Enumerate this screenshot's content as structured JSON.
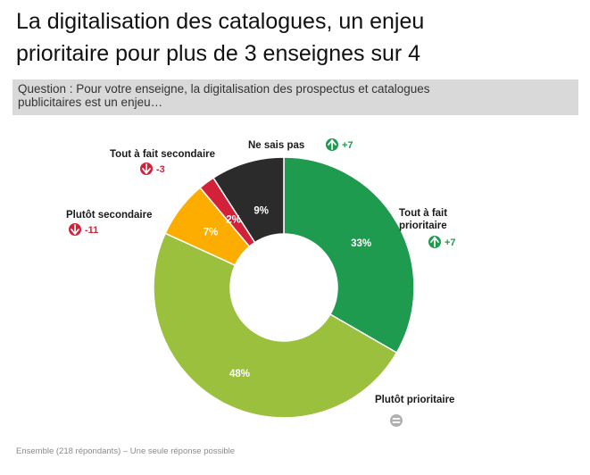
{
  "header": {
    "title_line1": "La digitalisation des catalogues, un enjeu",
    "title_line2": "prioritaire pour plus de 3 enseignes sur 4",
    "question_line1": "Question : Pour votre enseigne, la digitalisation des prospectus et catalogues",
    "question_line2": "publicitaires est un enjeu…"
  },
  "footer": {
    "note": "Ensemble (218 répondants) – Une seule réponse possible"
  },
  "colors": {
    "up": "#1e9b4e",
    "down": "#d3213a",
    "equal": "#b0b0b0"
  },
  "chart_data": {
    "type": "pie",
    "style": "donut",
    "categories": [
      "Tout à fait prioritaire",
      "Plutôt prioritaire",
      "Plutôt secondaire",
      "Tout à fait secondaire",
      "Ne sais pas"
    ],
    "values": [
      33,
      48,
      7,
      2,
      9
    ],
    "value_labels": [
      "33%",
      "48%",
      "7%",
      "2%",
      "9%"
    ],
    "colors": [
      "#1e9b4e",
      "#9ac03e",
      "#fcad00",
      "#d3213a",
      "#2b2b2b"
    ],
    "label_lines": [
      [
        "Tout à fait",
        "prioritaire"
      ],
      [
        "Plutôt prioritaire"
      ],
      [
        "Plutôt secondaire"
      ],
      [
        "Tout à fait secondaire"
      ],
      [
        "Ne sais pas"
      ]
    ],
    "deltas": [
      {
        "direction": "up",
        "text": "+7"
      },
      {
        "direction": "equal",
        "text": ""
      },
      {
        "direction": "down",
        "text": "-11"
      },
      {
        "direction": "down",
        "text": "-3"
      },
      {
        "direction": "up",
        "text": "+7"
      }
    ],
    "start": "12 o'clock",
    "direction": "clockwise"
  }
}
